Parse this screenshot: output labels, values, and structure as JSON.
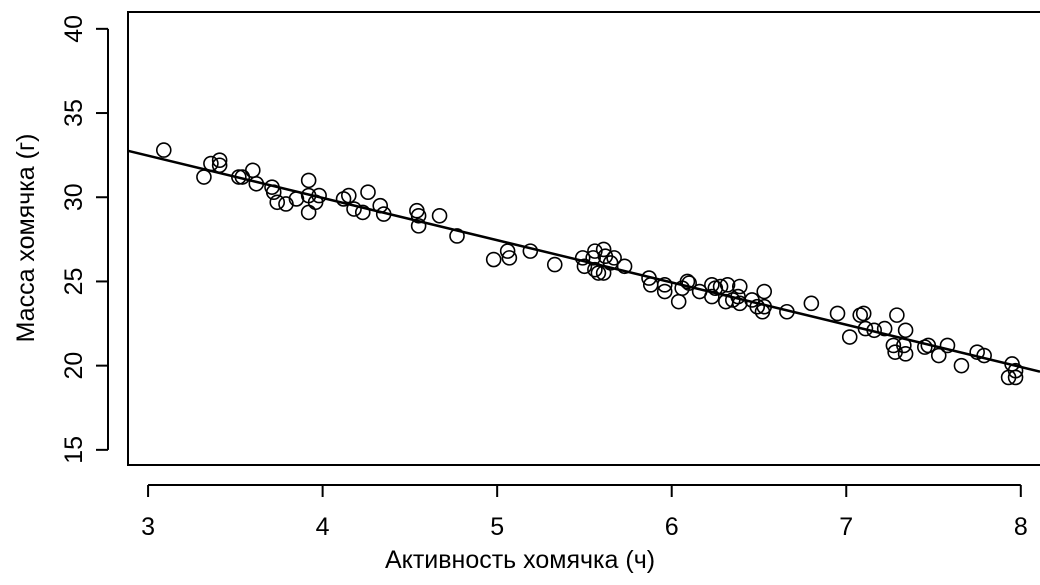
{
  "chart_data": {
    "type": "scatter",
    "xlabel": "Активность хомячка (ч)",
    "ylabel": "Масса хомячка (г)",
    "xlim": [
      2.885,
      8.11
    ],
    "ylim": [
      14.1,
      41.0
    ],
    "xticks": [
      3,
      4,
      5,
      6,
      7,
      8
    ],
    "yticks": [
      15,
      20,
      25,
      30,
      35,
      40
    ],
    "color": "#000000",
    "fit": {
      "intercept": 40.0,
      "slope": -2.51
    },
    "x": [
      3.09,
      3.32,
      3.36,
      3.41,
      3.41,
      3.52,
      3.54,
      3.6,
      3.62,
      3.71,
      3.72,
      3.74,
      3.79,
      3.85,
      3.92,
      3.92,
      3.92,
      3.96,
      3.98,
      4.12,
      4.15,
      4.18,
      4.23,
      4.26,
      4.33,
      4.35,
      4.54,
      4.55,
      4.55,
      4.67,
      4.77,
      4.98,
      5.06,
      5.07,
      5.19,
      5.33,
      5.49,
      5.5,
      5.55,
      5.56,
      5.56,
      5.58,
      5.61,
      5.61,
      5.62,
      5.65,
      5.67,
      5.73,
      5.87,
      5.88,
      5.96,
      5.96,
      6.04,
      6.06,
      6.09,
      6.1,
      6.16,
      6.23,
      6.23,
      6.25,
      6.28,
      6.31,
      6.32,
      6.35,
      6.38,
      6.39,
      6.39,
      6.46,
      6.49,
      6.52,
      6.53,
      6.53,
      6.66,
      6.8,
      6.95,
      7.02,
      7.08,
      7.1,
      7.11,
      7.16,
      7.22,
      7.27,
      7.28,
      7.29,
      7.33,
      7.34,
      7.34,
      7.45,
      7.47,
      7.53,
      7.58,
      7.66,
      7.75,
      7.79,
      7.93,
      7.95,
      7.97,
      7.97
    ],
    "y": [
      32.8,
      31.2,
      32.0,
      32.2,
      31.9,
      31.2,
      31.2,
      31.6,
      30.8,
      30.6,
      30.3,
      29.7,
      29.6,
      29.9,
      31.0,
      30.1,
      29.1,
      29.7,
      30.1,
      29.9,
      30.1,
      29.3,
      29.1,
      30.3,
      29.5,
      29.0,
      29.2,
      28.9,
      28.3,
      28.9,
      27.7,
      26.3,
      26.8,
      26.4,
      26.8,
      26.0,
      26.4,
      25.9,
      26.4,
      26.8,
      25.7,
      25.5,
      26.9,
      25.5,
      26.5,
      26.1,
      26.4,
      25.9,
      25.2,
      24.8,
      24.8,
      24.4,
      23.8,
      24.6,
      25.0,
      24.9,
      24.4,
      24.8,
      24.1,
      24.6,
      24.7,
      23.8,
      24.8,
      23.9,
      24.1,
      24.7,
      23.7,
      23.9,
      23.5,
      23.2,
      23.5,
      24.4,
      23.2,
      23.7,
      23.1,
      21.7,
      23.0,
      23.1,
      22.2,
      22.1,
      22.2,
      21.2,
      20.8,
      23.0,
      21.2,
      20.7,
      22.1,
      21.1,
      21.2,
      20.6,
      21.2,
      20.0,
      20.8,
      20.6,
      19.3,
      20.1,
      19.7,
      19.3
    ]
  }
}
